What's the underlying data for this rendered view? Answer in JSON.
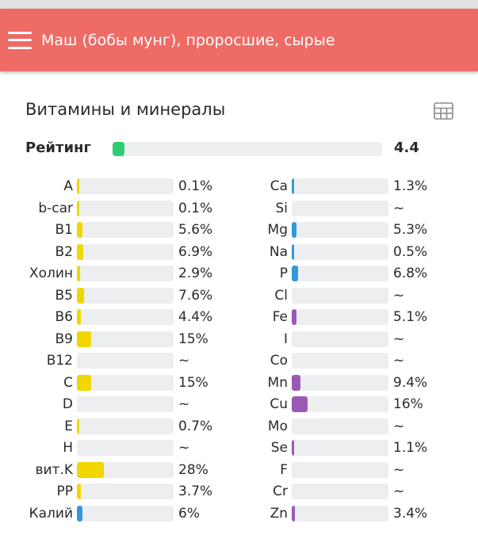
{
  "app_bar": {
    "title": "Маш (бобы мунг), проросшие, сырые",
    "menu_icon": "hamburger-menu-icon",
    "color": "#ee6b66"
  },
  "section": {
    "title": "Витамины и минералы",
    "table_icon": "table-grid-icon"
  },
  "rating": {
    "label": "Рейтинг",
    "value": "4.4",
    "level_fraction": 0.045,
    "color": "#2ecc71"
  },
  "colors": {
    "vitamin": "#f2d600",
    "potassium": "#3498db",
    "mineral_blue": "#3498db",
    "mineral_purple": "#9b59b6",
    "track": "#eceef0"
  },
  "vitamins": [
    {
      "label": "A",
      "value": "0.1%",
      "percent": 0.1,
      "color": "#f2d600"
    },
    {
      "label": "b-car",
      "value": "0.1%",
      "percent": 0.1,
      "color": "#f2d600"
    },
    {
      "label": "B1",
      "value": "5.6%",
      "percent": 5.6,
      "color": "#f2d600"
    },
    {
      "label": "B2",
      "value": "6.9%",
      "percent": 6.9,
      "color": "#f2d600"
    },
    {
      "label": "Холин",
      "value": "2.9%",
      "percent": 2.9,
      "color": "#f2d600"
    },
    {
      "label": "B5",
      "value": "7.6%",
      "percent": 7.6,
      "color": "#f2d600"
    },
    {
      "label": "B6",
      "value": "4.4%",
      "percent": 4.4,
      "color": "#f2d600"
    },
    {
      "label": "B9",
      "value": "15%",
      "percent": 15,
      "color": "#f2d600"
    },
    {
      "label": "B12",
      "value": "~",
      "percent": 0,
      "color": "#f2d600"
    },
    {
      "label": "C",
      "value": "15%",
      "percent": 15,
      "color": "#f2d600"
    },
    {
      "label": "D",
      "value": "~",
      "percent": 0,
      "color": "#f2d600"
    },
    {
      "label": "E",
      "value": "0.7%",
      "percent": 0.7,
      "color": "#f2d600"
    },
    {
      "label": "H",
      "value": "~",
      "percent": 0,
      "color": "#f2d600"
    },
    {
      "label": "вит.K",
      "value": "28%",
      "percent": 28,
      "color": "#f2d600"
    },
    {
      "label": "PP",
      "value": "3.7%",
      "percent": 3.7,
      "color": "#f2d600"
    },
    {
      "label": "Калий",
      "value": "6%",
      "percent": 6,
      "color": "#3498db"
    }
  ],
  "minerals": [
    {
      "label": "Ca",
      "value": "1.3%",
      "percent": 1.3,
      "color": "#3498db"
    },
    {
      "label": "Si",
      "value": "~",
      "percent": 0,
      "color": "#3498db"
    },
    {
      "label": "Mg",
      "value": "5.3%",
      "percent": 5.3,
      "color": "#3498db"
    },
    {
      "label": "Na",
      "value": "0.5%",
      "percent": 0.5,
      "color": "#3498db"
    },
    {
      "label": "P",
      "value": "6.8%",
      "percent": 6.8,
      "color": "#3498db"
    },
    {
      "label": "Cl",
      "value": "~",
      "percent": 0,
      "color": "#3498db"
    },
    {
      "label": "Fe",
      "value": "5.1%",
      "percent": 5.1,
      "color": "#9b59b6"
    },
    {
      "label": "I",
      "value": "~",
      "percent": 0,
      "color": "#9b59b6"
    },
    {
      "label": "Co",
      "value": "~",
      "percent": 0,
      "color": "#9b59b6"
    },
    {
      "label": "Mn",
      "value": "9.4%",
      "percent": 9.4,
      "color": "#9b59b6"
    },
    {
      "label": "Cu",
      "value": "16%",
      "percent": 16,
      "color": "#9b59b6"
    },
    {
      "label": "Mo",
      "value": "~",
      "percent": 0,
      "color": "#9b59b6"
    },
    {
      "label": "Se",
      "value": "1.1%",
      "percent": 1.1,
      "color": "#9b59b6"
    },
    {
      "label": "F",
      "value": "~",
      "percent": 0,
      "color": "#9b59b6"
    },
    {
      "label": "Cr",
      "value": "~",
      "percent": 0,
      "color": "#9b59b6"
    },
    {
      "label": "Zn",
      "value": "3.4%",
      "percent": 3.4,
      "color": "#9b59b6"
    }
  ]
}
